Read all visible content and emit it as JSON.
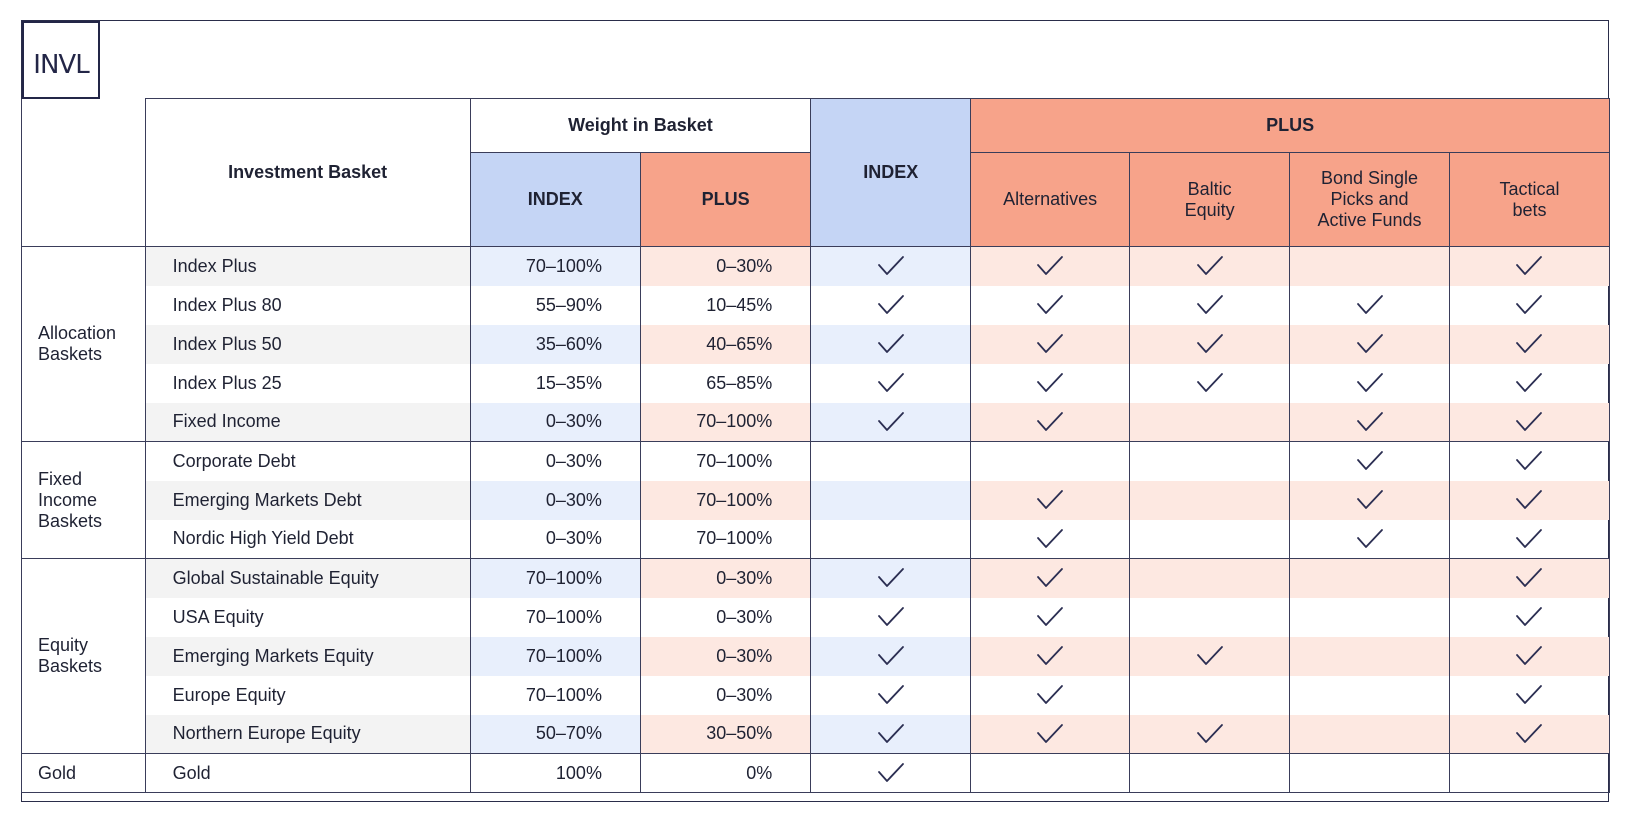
{
  "logo": "INVL",
  "header": {
    "investment_basket": "Investment Basket",
    "weight_in_basket": "Weight in Basket",
    "index": "INDEX",
    "plus": "PLUS",
    "index_top": "INDEX",
    "plus_top": "PLUS",
    "alternatives": "Alternatives",
    "baltic_equity": "Baltic Equity",
    "bond_single": "Bond Single Picks and Active Funds",
    "tactical": "Tactical bets"
  },
  "groups": [
    {
      "name": "Allocation Baskets",
      "rows": [
        {
          "name": "Index Plus",
          "index": "70–100%",
          "plus": "0–30%",
          "checks": [
            true,
            true,
            true,
            false,
            true
          ]
        },
        {
          "name": "Index Plus 80",
          "index": "55–90%",
          "plus": "10–45%",
          "checks": [
            true,
            true,
            true,
            true,
            true
          ]
        },
        {
          "name": "Index Plus 50",
          "index": "35–60%",
          "plus": "40–65%",
          "checks": [
            true,
            true,
            true,
            true,
            true
          ]
        },
        {
          "name": "Index Plus 25",
          "index": "15–35%",
          "plus": "65–85%",
          "checks": [
            true,
            true,
            true,
            true,
            true
          ]
        },
        {
          "name": "Fixed Income",
          "index": "0–30%",
          "plus": "70–100%",
          "checks": [
            true,
            true,
            false,
            true,
            true
          ]
        }
      ]
    },
    {
      "name": "Fixed Income Baskets",
      "rows": [
        {
          "name": "Corporate Debt",
          "index": "0–30%",
          "plus": "70–100%",
          "checks": [
            false,
            false,
            false,
            true,
            true
          ]
        },
        {
          "name": "Emerging Markets Debt",
          "index": "0–30%",
          "plus": "70–100%",
          "checks": [
            false,
            true,
            false,
            true,
            true
          ]
        },
        {
          "name": "Nordic High Yield Debt",
          "index": "0–30%",
          "plus": "70–100%",
          "checks": [
            false,
            true,
            false,
            true,
            true
          ]
        }
      ]
    },
    {
      "name": "Equity Baskets",
      "rows": [
        {
          "name": "Global Sustainable Equity",
          "index": "70–100%",
          "plus": "0–30%",
          "checks": [
            true,
            true,
            false,
            false,
            true
          ]
        },
        {
          "name": "USA Equity",
          "index": "70–100%",
          "plus": "0–30%",
          "checks": [
            true,
            true,
            false,
            false,
            true
          ]
        },
        {
          "name": "Emerging Markets Equity",
          "index": "70–100%",
          "plus": "0–30%",
          "checks": [
            true,
            true,
            true,
            false,
            true
          ]
        },
        {
          "name": "Europe Equity",
          "index": "70–100%",
          "plus": "0–30%",
          "checks": [
            true,
            true,
            false,
            false,
            true
          ]
        },
        {
          "name": "Northern Europe Equity",
          "index": "50–70%",
          "plus": "30–50%",
          "checks": [
            true,
            true,
            true,
            false,
            true
          ]
        }
      ]
    },
    {
      "name": "Gold",
      "rows": [
        {
          "name": "Gold",
          "index": "100%",
          "plus": "0%",
          "checks": [
            true,
            false,
            false,
            false,
            false
          ]
        }
      ]
    }
  ]
}
